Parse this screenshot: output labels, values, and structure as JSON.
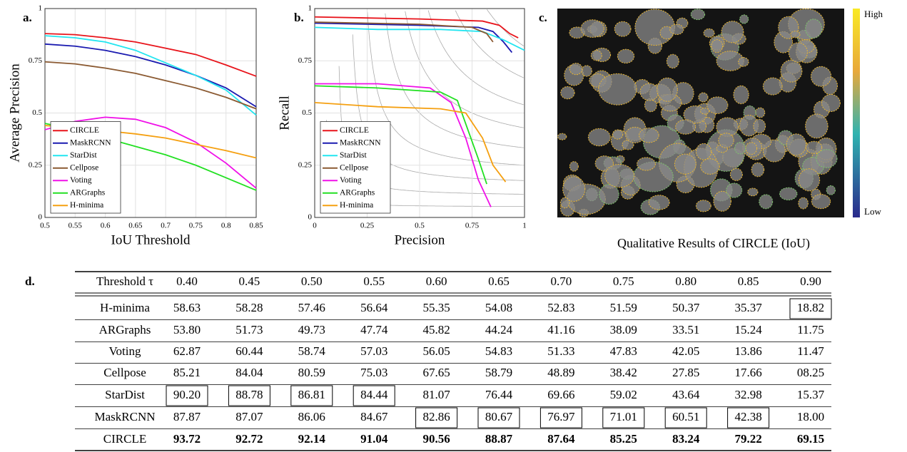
{
  "chart_data": [
    {
      "type": "line",
      "xlabel": "IoU Threshold",
      "ylabel": "Average Precision",
      "x": [
        0.5,
        0.55,
        0.6,
        0.65,
        0.7,
        0.75,
        0.8,
        0.85
      ],
      "xlim": [
        0.5,
        0.85
      ],
      "xticks": [
        0.5,
        0.55,
        0.6,
        0.65,
        0.7,
        0.75,
        0.8,
        0.85
      ],
      "ylim": [
        0,
        1
      ],
      "yticks": [
        0,
        0.25,
        0.5,
        0.75,
        1
      ],
      "grid": true,
      "legend": "lower left",
      "series": [
        {
          "name": "CIRCLE",
          "color": "#e8141b",
          "values": [
            0.88,
            0.875,
            0.86,
            0.84,
            0.81,
            0.78,
            0.73,
            0.676
          ]
        },
        {
          "name": "MaskRCNN",
          "color": "#1a1ab0",
          "values": [
            0.83,
            0.82,
            0.8,
            0.77,
            0.73,
            0.68,
            0.62,
            0.53
          ]
        },
        {
          "name": "StarDist",
          "color": "#22e5f0",
          "values": [
            0.87,
            0.86,
            0.84,
            0.8,
            0.74,
            0.68,
            0.61,
            0.49
          ]
        },
        {
          "name": "Cellpose",
          "color": "#8b5a32",
          "values": [
            0.745,
            0.735,
            0.715,
            0.69,
            0.655,
            0.62,
            0.575,
            0.52
          ]
        },
        {
          "name": "Voting",
          "color": "#f010e8",
          "values": [
            0.42,
            0.46,
            0.48,
            0.47,
            0.43,
            0.36,
            0.26,
            0.14
          ]
        },
        {
          "name": "ARGraphs",
          "color": "#22e022",
          "values": [
            0.45,
            0.42,
            0.38,
            0.34,
            0.3,
            0.25,
            0.19,
            0.13
          ]
        },
        {
          "name": "H-minima",
          "color": "#f5a011",
          "values": [
            0.44,
            0.43,
            0.415,
            0.4,
            0.38,
            0.35,
            0.32,
            0.285
          ]
        }
      ]
    },
    {
      "type": "line",
      "xlabel": "Precision",
      "ylabel": "Recall",
      "xlim": [
        0,
        1
      ],
      "xticks": [
        0,
        0.25,
        0.5,
        0.75,
        1
      ],
      "ylim": [
        0,
        1
      ],
      "yticks": [
        0,
        0.25,
        0.5,
        0.75,
        1
      ],
      "grid": true,
      "legend": "lower left",
      "series": [
        {
          "name": "CIRCLE",
          "color": "#e8141b",
          "x": [
            0,
            0.5,
            0.8,
            0.88,
            0.93,
            0.97
          ],
          "values": [
            0.96,
            0.95,
            0.94,
            0.92,
            0.88,
            0.86
          ]
        },
        {
          "name": "MaskRCNN",
          "color": "#1a1ab0",
          "x": [
            0,
            0.5,
            0.78,
            0.85,
            0.9,
            0.94
          ],
          "values": [
            0.93,
            0.92,
            0.91,
            0.89,
            0.84,
            0.79
          ]
        },
        {
          "name": "StarDist",
          "color": "#22e5f0",
          "x": [
            0,
            0.3,
            0.6,
            0.8,
            0.9,
            1
          ],
          "values": [
            0.91,
            0.9,
            0.9,
            0.89,
            0.85,
            0.8
          ]
        },
        {
          "name": "Cellpose",
          "color": "#8b5a32",
          "x": [
            0,
            0.5,
            0.75,
            0.82,
            0.85
          ],
          "values": [
            0.935,
            0.925,
            0.91,
            0.88,
            0.84
          ]
        },
        {
          "name": "Voting",
          "color": "#f010e8",
          "x": [
            0,
            0.3,
            0.55,
            0.65,
            0.72,
            0.78,
            0.84
          ],
          "values": [
            0.64,
            0.64,
            0.62,
            0.55,
            0.38,
            0.18,
            0.05
          ]
        },
        {
          "name": "ARGraphs",
          "color": "#22e022",
          "x": [
            0,
            0.3,
            0.6,
            0.68,
            0.73,
            0.78,
            0.82
          ],
          "values": [
            0.63,
            0.62,
            0.6,
            0.56,
            0.42,
            0.28,
            0.16
          ]
        },
        {
          "name": "H-minima",
          "color": "#f5a011",
          "x": [
            0,
            0.3,
            0.6,
            0.72,
            0.8,
            0.85,
            0.91
          ],
          "values": [
            0.55,
            0.53,
            0.52,
            0.5,
            0.38,
            0.25,
            0.17
          ]
        }
      ]
    }
  ],
  "panel_labels": [
    "a.",
    "b.",
    "c.",
    "d."
  ],
  "image_panel": {
    "caption": "Qualitative Results of CIRCLE (IoU)",
    "colorbar_high": "High",
    "colorbar_low": "Low"
  },
  "table": {
    "header": [
      "Threshold τ",
      "0.40",
      "0.45",
      "0.50",
      "0.55",
      "0.60",
      "0.65",
      "0.70",
      "0.75",
      "0.80",
      "0.85",
      "0.90"
    ],
    "rows": [
      [
        "H-minima",
        "58.63",
        "58.28",
        "57.46",
        "56.64",
        "55.35",
        "54.08",
        "52.83",
        "51.59",
        "50.37",
        "35.37",
        "18.82"
      ],
      [
        "ARGraphs",
        "53.80",
        "51.73",
        "49.73",
        "47.74",
        "45.82",
        "44.24",
        "41.16",
        "38.09",
        "33.51",
        "15.24",
        "11.75"
      ],
      [
        "Voting",
        "62.87",
        "60.44",
        "58.74",
        "57.03",
        "56.05",
        "54.83",
        "51.33",
        "47.83",
        "42.05",
        "13.86",
        "11.47"
      ],
      [
        "Cellpose",
        "85.21",
        "84.04",
        "80.59",
        "75.03",
        "67.65",
        "58.79",
        "48.89",
        "38.42",
        "27.85",
        "17.66",
        "08.25"
      ],
      [
        "StarDist",
        "90.20",
        "88.78",
        "86.81",
        "84.44",
        "81.07",
        "76.44",
        "69.66",
        "59.02",
        "43.64",
        "32.98",
        "15.37"
      ],
      [
        "MaskRCNN",
        "87.87",
        "87.07",
        "86.06",
        "84.67",
        "82.86",
        "80.67",
        "76.97",
        "71.01",
        "60.51",
        "42.38",
        "18.00"
      ],
      [
        "CIRCLE",
        "93.72",
        "92.72",
        "92.14",
        "91.04",
        "90.56",
        "88.87",
        "87.64",
        "85.25",
        "83.24",
        "79.22",
        "69.15"
      ]
    ],
    "boxed": [
      [
        11
      ],
      [],
      [],
      [],
      [
        1,
        2,
        3,
        4
      ],
      [
        5,
        6,
        7,
        8,
        9,
        10
      ],
      []
    ],
    "bold_row": 6
  }
}
